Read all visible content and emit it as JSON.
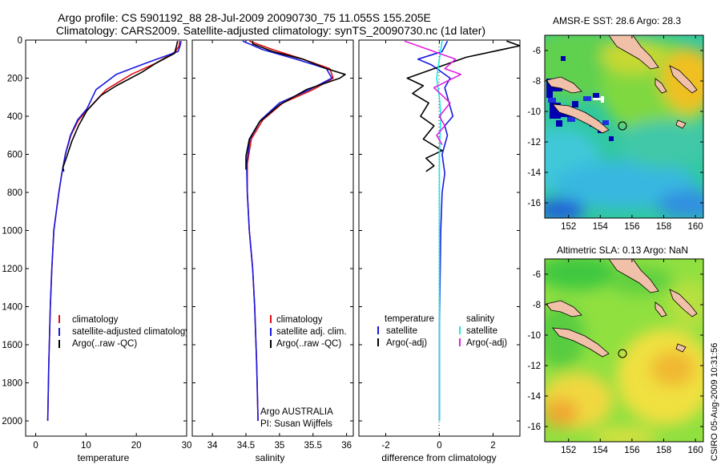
{
  "title_line1": "Argo profile: CS 5901192_88 28-Jul-2009 20090730_75 11.055S 155.205E",
  "title_line2": "Climatology: CARS2009. Satellite-adjusted climatology: synTS_20090730.nc (1d later)",
  "side_label": "CSIRO 05-Aug-2009 10:31:56",
  "colors": {
    "climatology": "#e01010",
    "satellite": "#1818e0",
    "argo": "#000000",
    "cyan": "#18e8e8",
    "magenta": "#e020e0",
    "map_sst_bg": "#30c8a0",
    "map_sla_bg": "#90e040",
    "land": "#f0c0a8"
  },
  "chart_data": [
    {
      "type": "line",
      "name": "temperature",
      "xlabel": "temperature",
      "ylabel": "",
      "xlim": [
        -2,
        30
      ],
      "ylim": [
        2080,
        0
      ],
      "xticks": [
        "0",
        "10",
        "20",
        "30"
      ],
      "xtickvals": [
        0,
        10,
        20,
        30
      ],
      "yticks": [
        "0",
        "200",
        "400",
        "600",
        "800",
        "1000",
        "1200",
        "1400",
        "1600",
        "1800",
        "2000"
      ],
      "ytickvals": [
        0,
        200,
        400,
        600,
        800,
        1000,
        1200,
        1400,
        1600,
        1800,
        2000
      ],
      "legend": [
        "climatology",
        "satellite-adjusted climatology",
        "Argo(..raw -QC)"
      ],
      "series": [
        {
          "name": "climatology",
          "color_key": "climatology",
          "x": [
            28.6,
            28.5,
            27.8,
            24,
            19,
            14,
            10.5,
            8.5,
            7,
            5.9,
            5.2,
            4.6,
            4.1,
            3.6,
            3.2,
            2.9,
            2.6,
            2.4
          ],
          "y": [
            5,
            30,
            60,
            120,
            180,
            260,
            360,
            420,
            500,
            600,
            700,
            800,
            900,
            1000,
            1200,
            1400,
            1700,
            2000
          ]
        },
        {
          "name": "satellite",
          "color_key": "satellite",
          "x": [
            28.9,
            28.7,
            28.3,
            22,
            16,
            12,
            10.2,
            8.3,
            6.9,
            5.9,
            5.2,
            4.6,
            4.1,
            3.6,
            3.2,
            2.9,
            2.6,
            2.4
          ],
          "y": [
            5,
            30,
            60,
            120,
            180,
            260,
            360,
            420,
            500,
            600,
            700,
            800,
            900,
            1000,
            1200,
            1400,
            1700,
            2000
          ]
        },
        {
          "name": "argo",
          "color_key": "argo",
          "x": [
            28.2,
            28,
            27.6,
            24,
            21,
            16,
            13,
            10.2,
            8.5,
            7.2,
            6.2,
            5.4,
            5.6
          ],
          "y": [
            5,
            30,
            70,
            120,
            170,
            240,
            290,
            370,
            450,
            530,
            610,
            670,
            690
          ]
        }
      ]
    },
    {
      "type": "line",
      "name": "salinity",
      "xlabel": "salinity",
      "ylabel": "",
      "xlim": [
        33.7,
        36.1
      ],
      "ylim": [
        2080,
        0
      ],
      "xticks": [
        "34",
        "34.5",
        "35",
        "35.5",
        "36"
      ],
      "xtickvals": [
        34,
        34.5,
        35,
        35.5,
        36
      ],
      "legend": [
        "climatology",
        "satellite adj. clim.",
        "Argo(..raw -QC)"
      ],
      "annotation": [
        "Argo AUSTRALIA",
        "PI: Susan Wijffels"
      ],
      "series": [
        {
          "name": "climatology",
          "color_key": "climatology",
          "x": [
            34.55,
            34.9,
            35.35,
            35.75,
            35.8,
            35.5,
            35.05,
            34.75,
            34.58,
            34.52,
            34.52,
            34.55,
            34.6,
            34.63,
            34.66,
            34.68
          ],
          "y": [
            5,
            50,
            100,
            150,
            200,
            260,
            330,
            420,
            520,
            650,
            800,
            1000,
            1200,
            1400,
            1700,
            2000
          ]
        },
        {
          "name": "satellite",
          "color_key": "satellite",
          "x": [
            34.45,
            34.75,
            35.25,
            35.7,
            35.78,
            35.45,
            35.0,
            34.72,
            34.56,
            34.51,
            34.52,
            34.55,
            34.6,
            34.63,
            34.66,
            34.68
          ],
          "y": [
            5,
            50,
            100,
            150,
            200,
            260,
            330,
            420,
            520,
            650,
            800,
            1000,
            1200,
            1400,
            1700,
            2000
          ]
        },
        {
          "name": "argo",
          "color_key": "argo",
          "x": [
            34.6,
            34.6,
            34.9,
            35.35,
            35.7,
            35.98,
            35.9,
            35.4,
            35.0,
            34.7,
            34.55,
            34.5,
            34.5
          ],
          "y": [
            5,
            20,
            60,
            100,
            150,
            180,
            200,
            260,
            340,
            430,
            520,
            610,
            680
          ]
        }
      ]
    },
    {
      "type": "line",
      "name": "difference from climatology",
      "xlabel": "difference from climatology",
      "ylabel": "",
      "xlim": [
        -3,
        3
      ],
      "ylim": [
        2080,
        0
      ],
      "xticks": [
        "-2",
        "0",
        "2"
      ],
      "xtickvals": [
        -2,
        0,
        2
      ],
      "legend_left": [
        "temperature",
        "satellite",
        "Argo(-adj)"
      ],
      "legend_right": [
        "salinity",
        "satellite",
        "Argo(-adj)"
      ],
      "series": [
        {
          "name": "temp satellite",
          "color_key": "satellite",
          "x": [
            0.3,
            0.1,
            -0.8,
            -0.3,
            0.4,
            0.2,
            0.5,
            0.2,
            0.3,
            0.1,
            0.2,
            0.1,
            0.05,
            0,
            0
          ],
          "y": [
            5,
            60,
            100,
            130,
            200,
            250,
            400,
            450,
            500,
            600,
            700,
            800,
            1000,
            1500,
            2000
          ]
        },
        {
          "name": "temp argo",
          "color_key": "argo",
          "x": [
            2.5,
            3.0,
            1.0,
            -1.2,
            -0.6,
            -1.0,
            -0.4,
            -0.7,
            -0.2,
            -0.6,
            0.1,
            -0.5,
            -0.2,
            -0.5
          ],
          "y": [
            5,
            30,
            90,
            200,
            240,
            280,
            330,
            400,
            450,
            520,
            580,
            620,
            660,
            690
          ]
        },
        {
          "name": "sal satellite",
          "color_key": "cyan",
          "x": [
            0.1,
            0.0,
            -0.1,
            0.0,
            0.05,
            0.0,
            0.0,
            0.0,
            0.0
          ],
          "y": [
            5,
            100,
            200,
            300,
            400,
            600,
            1000,
            1500,
            2000
          ]
        },
        {
          "name": "sal argo",
          "color_key": "magenta",
          "x": [
            -1.3,
            -0.4,
            0.6,
            0.2,
            0.8,
            -0.2,
            0.4,
            0.0,
            0.2,
            -0.1,
            0.1
          ],
          "y": [
            5,
            50,
            100,
            150,
            180,
            250,
            330,
            400,
            450,
            500,
            550
          ]
        }
      ]
    },
    {
      "type": "heatmap",
      "name": "sst_map",
      "title": "AMSR-E SST: 28.6 Argo: 28.3",
      "xlim": [
        150.5,
        160.5
      ],
      "ylim": [
        -17,
        -5
      ],
      "xticks": [
        "152",
        "154",
        "156",
        "158",
        "160"
      ],
      "xtickvals": [
        152,
        154,
        156,
        158,
        160
      ],
      "yticks": [
        "-6",
        "-8",
        "-10",
        "-12",
        "-14",
        "-16"
      ],
      "ytickvals": [
        -6,
        -8,
        -10,
        -12,
        -14,
        -16
      ],
      "float_lon": 155.2,
      "float_lat": -11.05
    },
    {
      "type": "heatmap",
      "name": "sla_map",
      "title": "Altimetric SLA: 0.13 Argo: NaN",
      "xlim": [
        150.5,
        160.5
      ],
      "ylim": [
        -17,
        -5
      ],
      "xticks": [
        "152",
        "154",
        "156",
        "158",
        "160"
      ],
      "xtickvals": [
        152,
        154,
        156,
        158,
        160
      ],
      "yticks": [
        "-6",
        "-8",
        "-10",
        "-12",
        "-14",
        "-16"
      ],
      "ytickvals": [
        -6,
        -8,
        -10,
        -12,
        -14,
        -16
      ],
      "float_lon": 155.2,
      "float_lat": -11.05
    }
  ]
}
